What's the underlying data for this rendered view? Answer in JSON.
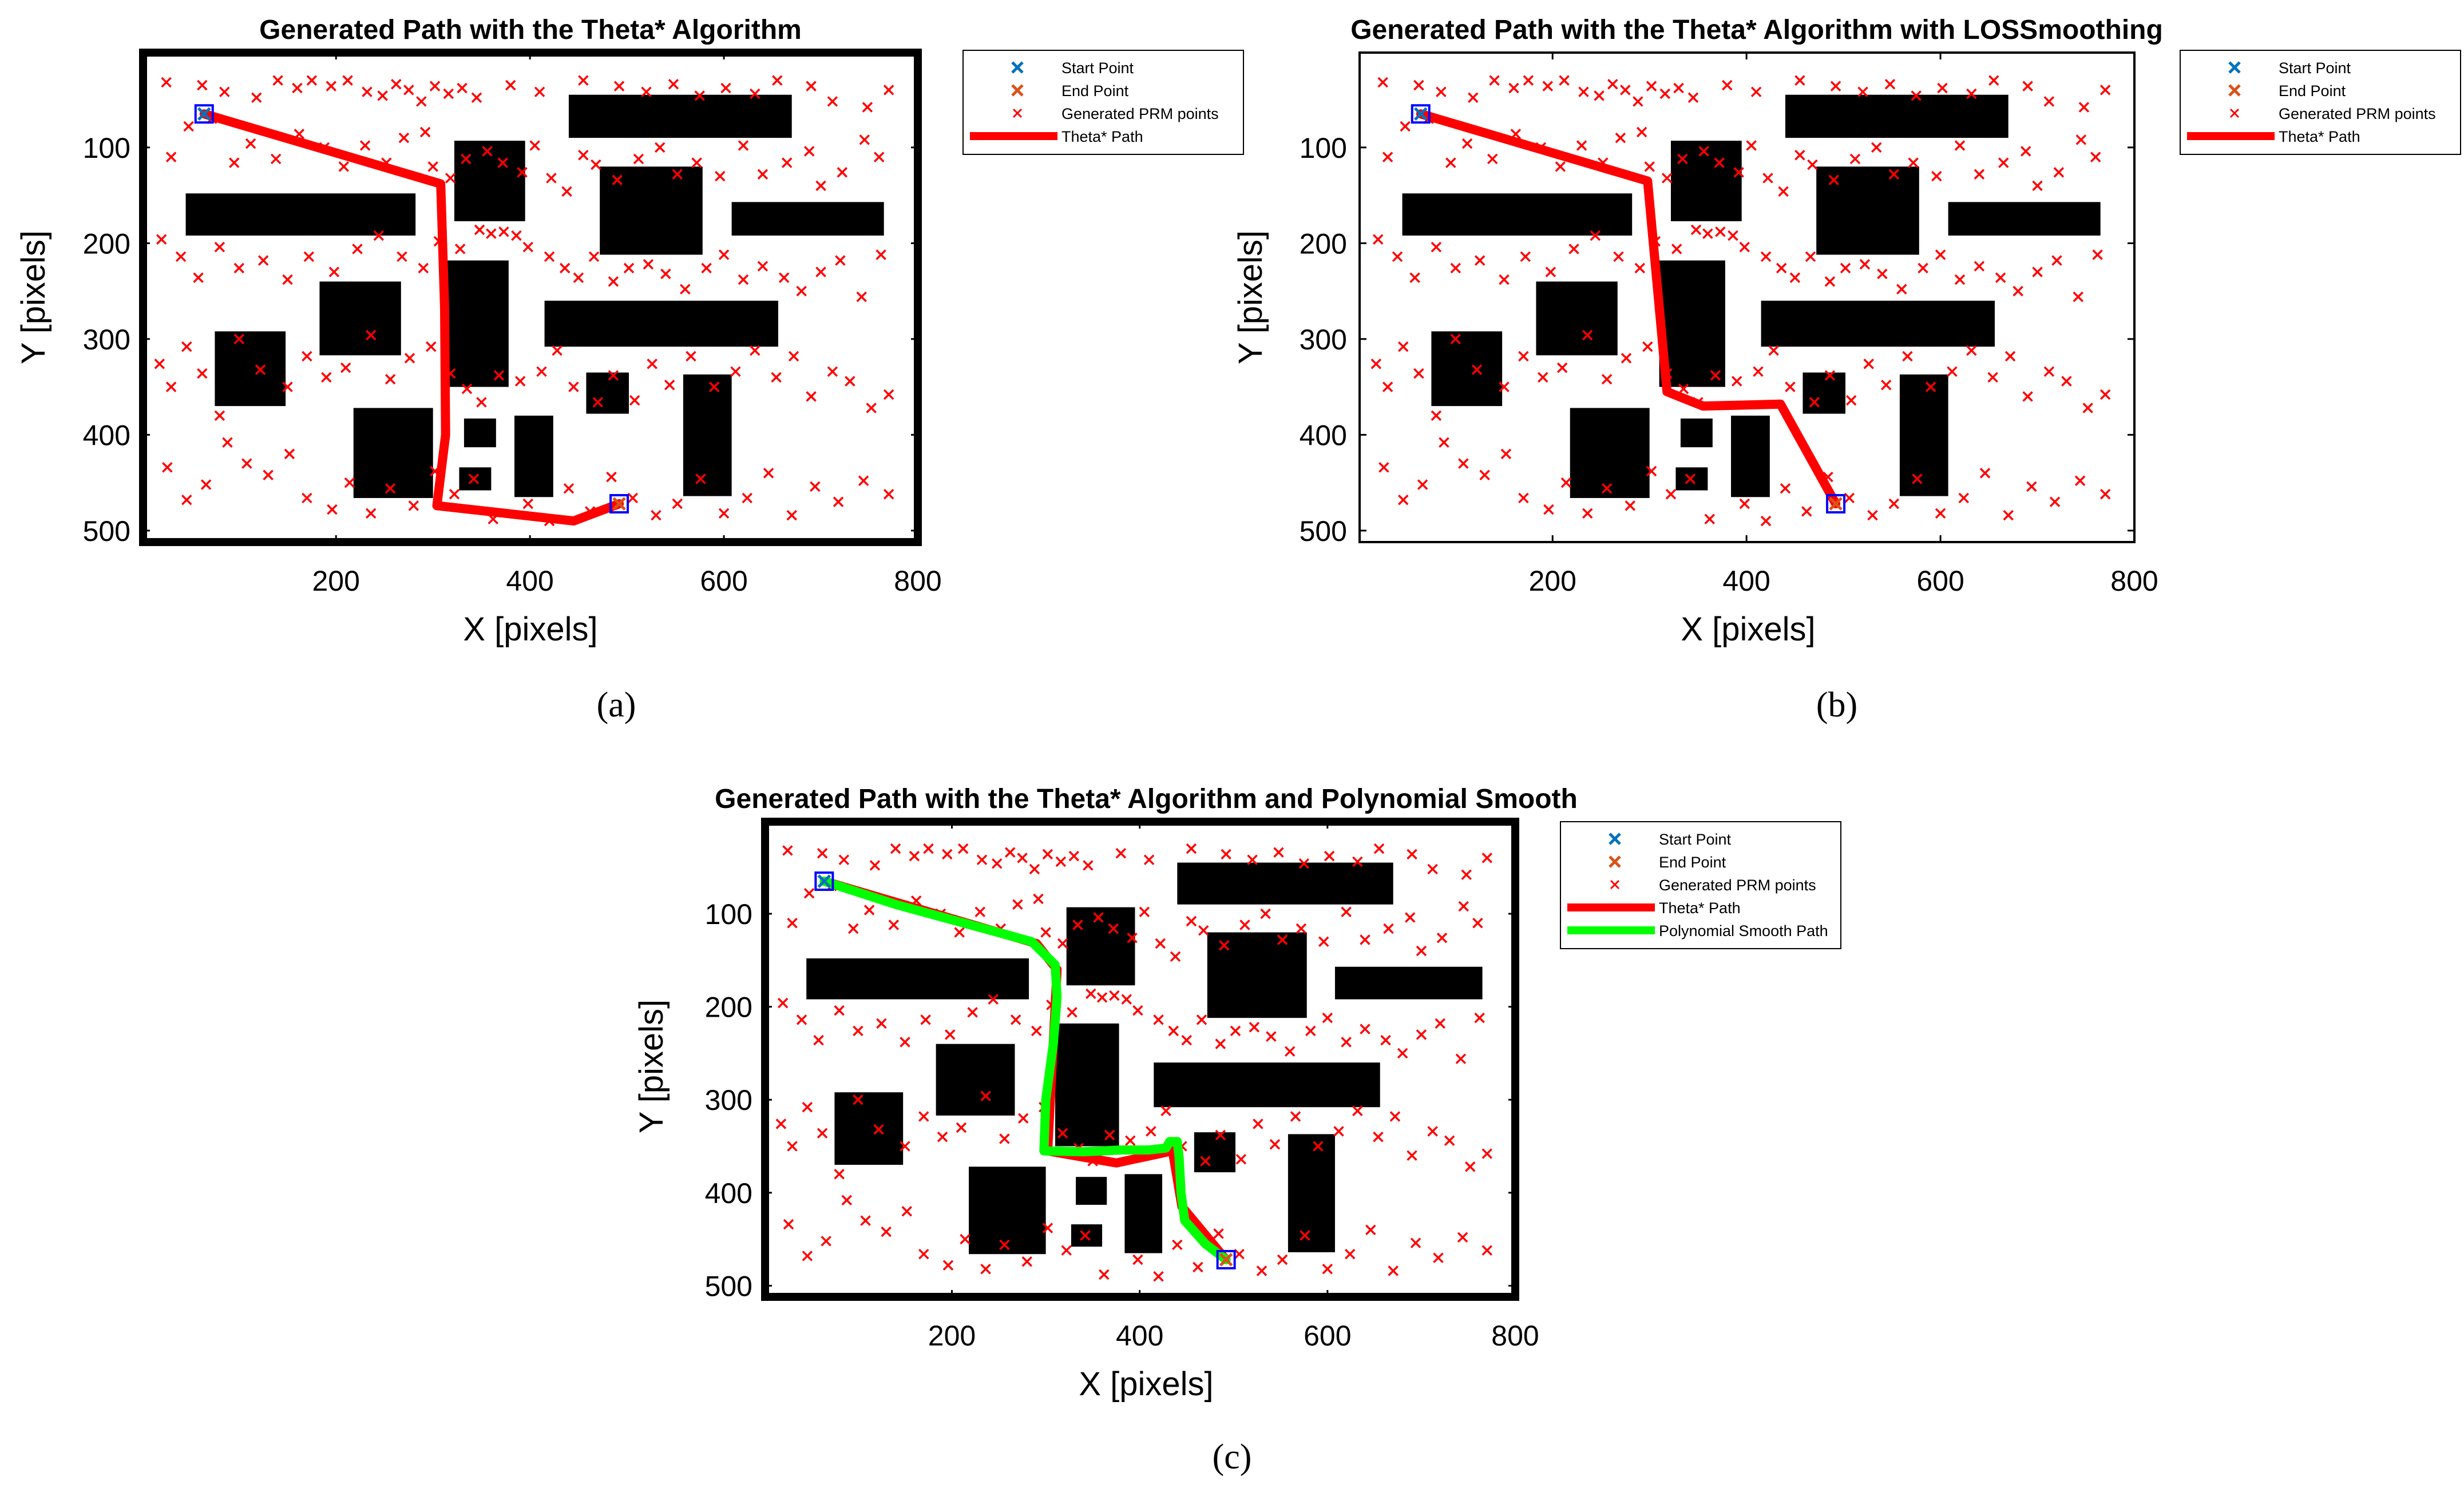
{
  "colors": {
    "background": "#ffffff",
    "obstacle": "#000000",
    "frame": "#000000",
    "start": "#0072bd",
    "end": "#d95319",
    "prm": "#ff0000",
    "theta_path": "#ff0000",
    "poly_path": "#00ff00",
    "marker_box": "#0000ff"
  },
  "obstacles": [
    {
      "x0": 440,
      "x1": 670,
      "y0": 45,
      "y1": 90
    },
    {
      "x0": 45,
      "x1": 282,
      "y0": 148,
      "y1": 192
    },
    {
      "x0": 608,
      "x1": 765,
      "y0": 157,
      "y1": 192
    },
    {
      "x0": 322,
      "x1": 395,
      "y0": 93,
      "y1": 177
    },
    {
      "x0": 472,
      "x1": 578,
      "y0": 120,
      "y1": 212
    },
    {
      "x0": 183,
      "x1": 267,
      "y0": 240,
      "y1": 317
    },
    {
      "x0": 310,
      "x1": 378,
      "y0": 218,
      "y1": 350
    },
    {
      "x0": 415,
      "x1": 656,
      "y0": 260,
      "y1": 308
    },
    {
      "x0": 75,
      "x1": 148,
      "y0": 292,
      "y1": 370
    },
    {
      "x0": 458,
      "x1": 502,
      "y0": 335,
      "y1": 378
    },
    {
      "x0": 558,
      "x1": 608,
      "y0": 337,
      "y1": 464
    },
    {
      "x0": 218,
      "x1": 300,
      "y0": 372,
      "y1": 466
    },
    {
      "x0": 332,
      "x1": 365,
      "y0": 383,
      "y1": 413
    },
    {
      "x0": 384,
      "x1": 424,
      "y0": 380,
      "y1": 465
    },
    {
      "x0": 327,
      "x1": 360,
      "y0": 434,
      "y1": 458
    }
  ],
  "prm_points": [
    [
      25,
      32
    ],
    [
      62,
      35
    ],
    [
      85,
      42
    ],
    [
      118,
      48
    ],
    [
      140,
      30
    ],
    [
      160,
      38
    ],
    [
      175,
      30
    ],
    [
      195,
      36
    ],
    [
      212,
      30
    ],
    [
      232,
      42
    ],
    [
      248,
      46
    ],
    [
      262,
      34
    ],
    [
      275,
      40
    ],
    [
      288,
      52
    ],
    [
      302,
      36
    ],
    [
      316,
      44
    ],
    [
      330,
      38
    ],
    [
      345,
      48
    ],
    [
      380,
      35
    ],
    [
      410,
      42
    ],
    [
      455,
      30
    ],
    [
      492,
      36
    ],
    [
      520,
      42
    ],
    [
      548,
      34
    ],
    [
      575,
      46
    ],
    [
      602,
      38
    ],
    [
      632,
      44
    ],
    [
      655,
      30
    ],
    [
      690,
      36
    ],
    [
      712,
      52
    ],
    [
      748,
      58
    ],
    [
      770,
      40
    ],
    [
      30,
      110
    ],
    [
      48,
      78
    ],
    [
      72,
      70
    ],
    [
      95,
      116
    ],
    [
      112,
      96
    ],
    [
      138,
      112
    ],
    [
      162,
      86
    ],
    [
      188,
      100
    ],
    [
      208,
      120
    ],
    [
      230,
      98
    ],
    [
      252,
      116
    ],
    [
      270,
      90
    ],
    [
      292,
      84
    ],
    [
      300,
      120
    ],
    [
      318,
      132
    ],
    [
      334,
      112
    ],
    [
      356,
      104
    ],
    [
      372,
      116
    ],
    [
      392,
      126
    ],
    [
      405,
      98
    ],
    [
      422,
      132
    ],
    [
      438,
      146
    ],
    [
      455,
      108
    ],
    [
      468,
      118
    ],
    [
      490,
      134
    ],
    [
      512,
      112
    ],
    [
      534,
      100
    ],
    [
      552,
      128
    ],
    [
      572,
      116
    ],
    [
      596,
      130
    ],
    [
      620,
      98
    ],
    [
      640,
      128
    ],
    [
      665,
      116
    ],
    [
      688,
      104
    ],
    [
      700,
      140
    ],
    [
      722,
      126
    ],
    [
      745,
      92
    ],
    [
      760,
      110
    ],
    [
      20,
      196
    ],
    [
      40,
      214
    ],
    [
      58,
      236
    ],
    [
      80,
      204
    ],
    [
      100,
      226
    ],
    [
      125,
      218
    ],
    [
      150,
      238
    ],
    [
      172,
      214
    ],
    [
      198,
      230
    ],
    [
      222,
      206
    ],
    [
      244,
      192
    ],
    [
      268,
      214
    ],
    [
      290,
      226
    ],
    [
      306,
      198
    ],
    [
      328,
      206
    ],
    [
      348,
      186
    ],
    [
      360,
      190
    ],
    [
      373,
      188
    ],
    [
      386,
      192
    ],
    [
      398,
      204
    ],
    [
      420,
      214
    ],
    [
      436,
      226
    ],
    [
      450,
      236
    ],
    [
      466,
      214
    ],
    [
      486,
      240
    ],
    [
      502,
      226
    ],
    [
      522,
      222
    ],
    [
      540,
      232
    ],
    [
      560,
      248
    ],
    [
      582,
      226
    ],
    [
      600,
      212
    ],
    [
      620,
      238
    ],
    [
      640,
      224
    ],
    [
      662,
      236
    ],
    [
      680,
      250
    ],
    [
      700,
      230
    ],
    [
      720,
      218
    ],
    [
      742,
      256
    ],
    [
      762,
      212
    ],
    [
      18,
      326
    ],
    [
      30,
      350
    ],
    [
      46,
      308
    ],
    [
      62,
      336
    ],
    [
      80,
      380
    ],
    [
      100,
      300
    ],
    [
      122,
      332
    ],
    [
      150,
      350
    ],
    [
      170,
      318
    ],
    [
      190,
      340
    ],
    [
      210,
      330
    ],
    [
      236,
      296
    ],
    [
      256,
      342
    ],
    [
      276,
      320
    ],
    [
      298,
      308
    ],
    [
      318,
      336
    ],
    [
      335,
      352
    ],
    [
      350,
      366
    ],
    [
      368,
      338
    ],
    [
      390,
      344
    ],
    [
      412,
      334
    ],
    [
      428,
      312
    ],
    [
      445,
      350
    ],
    [
      470,
      366
    ],
    [
      486,
      338
    ],
    [
      508,
      364
    ],
    [
      526,
      326
    ],
    [
      544,
      348
    ],
    [
      566,
      318
    ],
    [
      590,
      350
    ],
    [
      612,
      334
    ],
    [
      632,
      312
    ],
    [
      654,
      340
    ],
    [
      672,
      318
    ],
    [
      690,
      360
    ],
    [
      712,
      334
    ],
    [
      730,
      344
    ],
    [
      752,
      372
    ],
    [
      770,
      358
    ],
    [
      26,
      434
    ],
    [
      46,
      468
    ],
    [
      66,
      452
    ],
    [
      88,
      408
    ],
    [
      108,
      430
    ],
    [
      130,
      442
    ],
    [
      152,
      420
    ],
    [
      170,
      466
    ],
    [
      196,
      478
    ],
    [
      214,
      450
    ],
    [
      236,
      482
    ],
    [
      256,
      456
    ],
    [
      280,
      474
    ],
    [
      302,
      438
    ],
    [
      322,
      462
    ],
    [
      342,
      446
    ],
    [
      362,
      488
    ],
    [
      398,
      472
    ],
    [
      420,
      490
    ],
    [
      440,
      456
    ],
    [
      462,
      480
    ],
    [
      484,
      444
    ],
    [
      506,
      466
    ],
    [
      530,
      484
    ],
    [
      552,
      472
    ],
    [
      576,
      446
    ],
    [
      600,
      482
    ],
    [
      624,
      466
    ],
    [
      646,
      440
    ],
    [
      670,
      484
    ],
    [
      694,
      454
    ],
    [
      718,
      470
    ],
    [
      744,
      448
    ],
    [
      770,
      462
    ]
  ],
  "panels": [
    {
      "caption": "(a)",
      "chart_data": {
        "type": "scatter",
        "title": "Generated Path with the Theta* Algorithm",
        "xlabel": "X [pixels]",
        "ylabel": "Y [pixels]",
        "xlim": [
          1,
          800
        ],
        "ylim": [
          1,
          512
        ],
        "y_reversed": true,
        "xticks": [
          200,
          400,
          600,
          800
        ],
        "yticks": [
          100,
          200,
          300,
          400,
          500
        ],
        "legend_position": "outside-top-right",
        "legend": [
          "Start Point",
          "End Point",
          "Generated PRM points",
          "Theta* Path"
        ],
        "start": [
          64,
          65
        ],
        "end": [
          492,
          472
        ],
        "theta_path": [
          [
            64,
            65
          ],
          [
            308,
            138
          ],
          [
            312,
            268
          ],
          [
            313,
            400
          ],
          [
            304,
            474
          ],
          [
            445,
            490
          ],
          [
            492,
            472
          ]
        ]
      }
    },
    {
      "caption": "(b)",
      "chart_data": {
        "type": "scatter",
        "title": "Generated Path with the Theta* Algorithm with LOSSmoothing",
        "xlabel": "X [pixels]",
        "ylabel": "Y [pixels]",
        "xlim": [
          1,
          800
        ],
        "ylim": [
          1,
          512
        ],
        "y_reversed": true,
        "xticks": [
          200,
          400,
          600,
          800
        ],
        "yticks": [
          100,
          200,
          300,
          400,
          500
        ],
        "legend_position": "outside-top-right",
        "legend": [
          "Start Point",
          "End Point",
          "Generated PRM points",
          "Theta* Path"
        ],
        "start": [
          64,
          65
        ],
        "end": [
          492,
          472
        ],
        "theta_path": [
          [
            64,
            65
          ],
          [
            298,
            135
          ],
          [
            318,
            355
          ],
          [
            355,
            370
          ],
          [
            435,
            368
          ],
          [
            492,
            472
          ]
        ]
      }
    },
    {
      "caption": "(c)",
      "chart_data": {
        "type": "scatter",
        "title": "Generated Path with the Theta* Algorithm and Polynomial Smooth",
        "xlabel": "X [pixels]",
        "ylabel": "Y [pixels]",
        "xlim": [
          1,
          800
        ],
        "ylim": [
          1,
          512
        ],
        "y_reversed": true,
        "xticks": [
          200,
          400,
          600,
          800
        ],
        "yticks": [
          100,
          200,
          300,
          400,
          500
        ],
        "legend_position": "outside-top-right",
        "legend": [
          "Start Point",
          "End Point",
          "Generated PRM points",
          "Theta* Path",
          "Polynomial Smooth Path"
        ],
        "start": [
          64,
          65
        ],
        "end": [
          492,
          472
        ],
        "theta_path": [
          [
            64,
            65
          ],
          [
            290,
            132
          ],
          [
            312,
            160
          ],
          [
            302,
            355
          ],
          [
            375,
            368
          ],
          [
            435,
            355
          ],
          [
            445,
            415
          ],
          [
            492,
            472
          ]
        ],
        "poly_path": [
          [
            64,
            65
          ],
          [
            140,
            90
          ],
          [
            220,
            112
          ],
          [
            285,
            130
          ],
          [
            310,
            155
          ],
          [
            312,
            190
          ],
          [
            308,
            240
          ],
          [
            300,
            300
          ],
          [
            298,
            355
          ],
          [
            340,
            356
          ],
          [
            380,
            354
          ],
          [
            410,
            354
          ],
          [
            428,
            352
          ],
          [
            432,
            345
          ],
          [
            440,
            345
          ],
          [
            442,
            362
          ],
          [
            444,
            400
          ],
          [
            448,
            430
          ],
          [
            470,
            455
          ],
          [
            492,
            472
          ]
        ]
      }
    }
  ]
}
